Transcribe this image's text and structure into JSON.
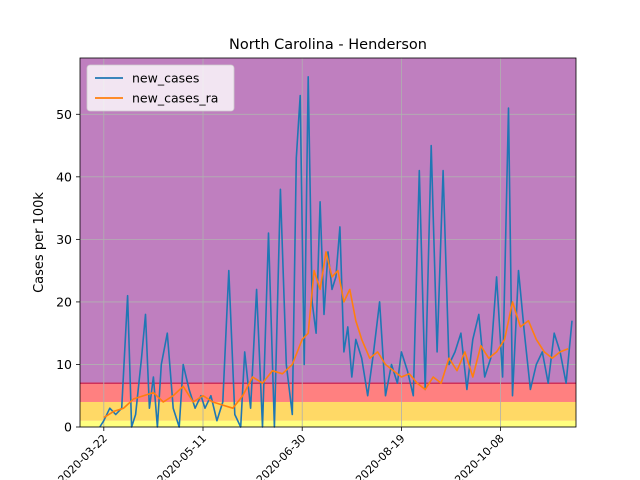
{
  "chart_data": {
    "type": "line",
    "title": "North Carolina - Henderson",
    "xlabel": "",
    "ylabel": "Cases per 100k",
    "ylim": [
      0,
      59
    ],
    "xlim": [
      "2020-03-10",
      "2020-11-15"
    ],
    "yticks": [
      0,
      10,
      20,
      30,
      40,
      50
    ],
    "xticks": [
      "2020-03-22",
      "2020-05-11",
      "2020-06-30",
      "2020-08-19",
      "2020-10-08"
    ],
    "grid": true,
    "legend_position": "top-left",
    "background_bands": [
      {
        "from": 0,
        "to": 1,
        "color": "#ffff80"
      },
      {
        "from": 1,
        "to": 4,
        "color": "#ffd966"
      },
      {
        "from": 4,
        "to": 7,
        "color": "#ff8080"
      },
      {
        "from": 7,
        "to": 59,
        "color": "#bf7fbf"
      }
    ],
    "series": [
      {
        "name": "new_cases",
        "color": "#1f77b4",
        "x": [
          "2020-03-20",
          "2020-03-22",
          "2020-03-25",
          "2020-03-28",
          "2020-03-31",
          "2020-04-03",
          "2020-04-05",
          "2020-04-07",
          "2020-04-10",
          "2020-04-12",
          "2020-04-14",
          "2020-04-16",
          "2020-04-18",
          "2020-04-20",
          "2020-04-23",
          "2020-04-26",
          "2020-04-29",
          "2020-05-01",
          "2020-05-04",
          "2020-05-07",
          "2020-05-10",
          "2020-05-12",
          "2020-05-15",
          "2020-05-18",
          "2020-05-21",
          "2020-05-24",
          "2020-05-27",
          "2020-05-30",
          "2020-06-01",
          "2020-06-04",
          "2020-06-07",
          "2020-06-10",
          "2020-06-13",
          "2020-06-16",
          "2020-06-19",
          "2020-06-22",
          "2020-06-25",
          "2020-06-27",
          "2020-06-29",
          "2020-07-01",
          "2020-07-03",
          "2020-07-05",
          "2020-07-07",
          "2020-07-09",
          "2020-07-11",
          "2020-07-13",
          "2020-07-15",
          "2020-07-17",
          "2020-07-19",
          "2020-07-21",
          "2020-07-23",
          "2020-07-25",
          "2020-07-27",
          "2020-07-30",
          "2020-08-02",
          "2020-08-05",
          "2020-08-08",
          "2020-08-11",
          "2020-08-14",
          "2020-08-17",
          "2020-08-19",
          "2020-08-22",
          "2020-08-25",
          "2020-08-28",
          "2020-08-31",
          "2020-09-03",
          "2020-09-06",
          "2020-09-09",
          "2020-09-12",
          "2020-09-15",
          "2020-09-18",
          "2020-09-21",
          "2020-09-24",
          "2020-09-27",
          "2020-09-30",
          "2020-10-03",
          "2020-10-06",
          "2020-10-09",
          "2020-10-12",
          "2020-10-14",
          "2020-10-17",
          "2020-10-20",
          "2020-10-23",
          "2020-10-26",
          "2020-10-29",
          "2020-11-01",
          "2020-11-04",
          "2020-11-07",
          "2020-11-10",
          "2020-11-13"
        ],
        "y": [
          0,
          1,
          3,
          2,
          3,
          21,
          0,
          2,
          11,
          18,
          3,
          8,
          0,
          10,
          15,
          3,
          0,
          10,
          6,
          3,
          5,
          3,
          5,
          1,
          4,
          25,
          2,
          0,
          12,
          3,
          22,
          0,
          31,
          0,
          38,
          10,
          2,
          43,
          53,
          10,
          56,
          20,
          15,
          36,
          18,
          28,
          22,
          24,
          32,
          12,
          16,
          8,
          14,
          11,
          5,
          12,
          20,
          5,
          10,
          7,
          12,
          9,
          5,
          41,
          6,
          45,
          12,
          41,
          10,
          12,
          15,
          6,
          14,
          18,
          8,
          11,
          24,
          8,
          51,
          5,
          25,
          15,
          6,
          10,
          12,
          7,
          15,
          12,
          7,
          17
        ]
      },
      {
        "name": "new_cases_ra",
        "color": "#ff7f0e",
        "x": [
          "2020-03-22",
          "2020-03-27",
          "2020-04-01",
          "2020-04-06",
          "2020-04-11",
          "2020-04-16",
          "2020-04-21",
          "2020-04-26",
          "2020-05-01",
          "2020-05-06",
          "2020-05-11",
          "2020-05-16",
          "2020-05-21",
          "2020-05-26",
          "2020-05-31",
          "2020-06-05",
          "2020-06-10",
          "2020-06-15",
          "2020-06-20",
          "2020-06-25",
          "2020-06-30",
          "2020-07-03",
          "2020-07-06",
          "2020-07-09",
          "2020-07-12",
          "2020-07-15",
          "2020-07-18",
          "2020-07-21",
          "2020-07-24",
          "2020-07-27",
          "2020-07-30",
          "2020-08-03",
          "2020-08-07",
          "2020-08-11",
          "2020-08-15",
          "2020-08-19",
          "2020-08-23",
          "2020-08-27",
          "2020-08-31",
          "2020-09-04",
          "2020-09-08",
          "2020-09-12",
          "2020-09-16",
          "2020-09-20",
          "2020-09-24",
          "2020-09-28",
          "2020-10-02",
          "2020-10-06",
          "2020-10-10",
          "2020-10-14",
          "2020-10-18",
          "2020-10-22",
          "2020-10-26",
          "2020-10-30",
          "2020-11-03",
          "2020-11-07",
          "2020-11-11"
        ],
        "y": [
          1.5,
          2.5,
          3,
          4.5,
          5,
          5.5,
          4,
          5,
          6.5,
          4,
          5,
          4,
          3.5,
          3,
          5,
          8,
          7,
          9,
          8.5,
          10,
          14,
          15,
          25,
          22,
          28,
          24,
          25,
          20,
          22,
          17,
          14,
          11,
          12,
          10,
          9,
          8,
          8.5,
          7,
          6,
          8,
          7,
          11,
          9,
          12,
          8,
          13,
          11,
          12,
          14,
          20,
          16,
          17,
          14,
          12,
          11,
          12,
          12.5
        ]
      }
    ]
  }
}
